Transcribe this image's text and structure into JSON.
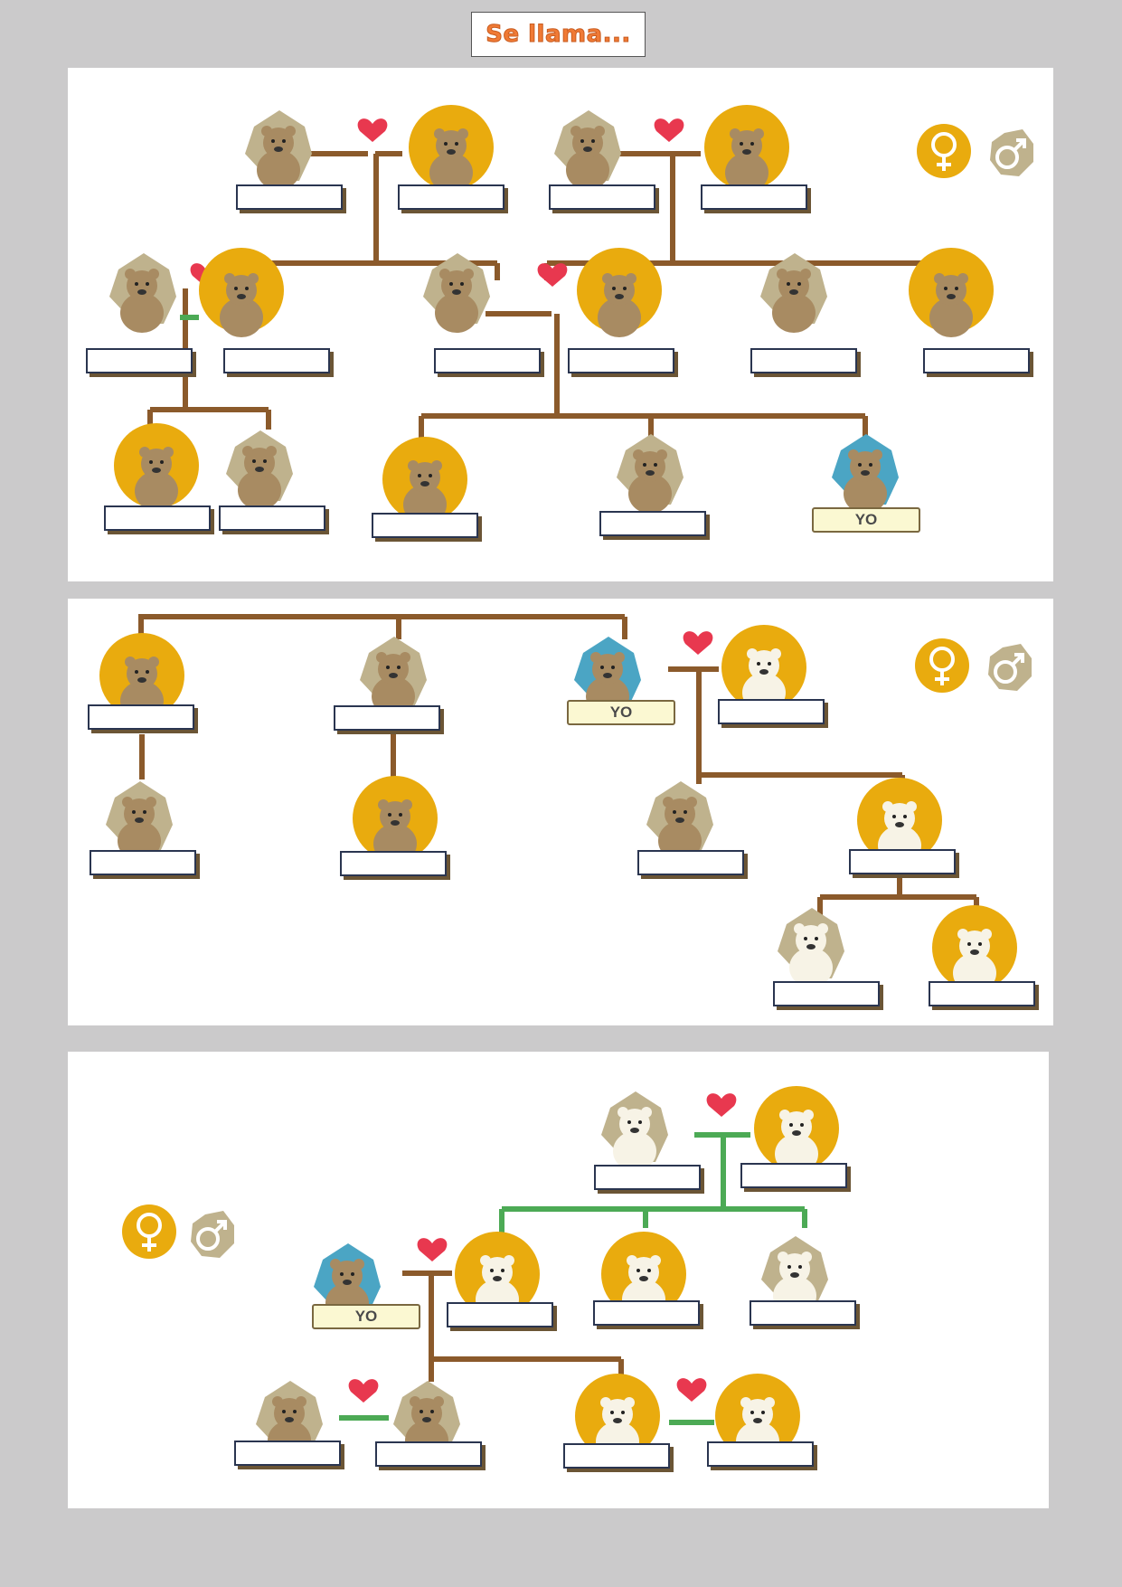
{
  "title": "Se llama...",
  "yo_label": "YO",
  "icons": {
    "female": "female-symbol-icon",
    "male": "male-symbol-icon",
    "heart": "heart-icon",
    "bear": "bear-icon"
  },
  "colors": {
    "female_badge": "#e9ab0e",
    "male_badge": "#bfb28d",
    "yo_badge": "#4ba5c4",
    "branch_line": "#8b5a2b",
    "in_law_line": "#4caa55",
    "heart": "#e8384f",
    "yo_box_fill": "#fbf8d2"
  }
}
